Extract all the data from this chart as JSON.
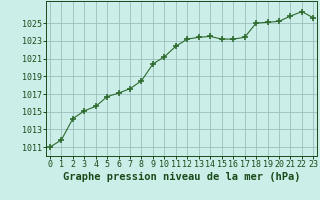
{
  "x": [
    0,
    1,
    2,
    3,
    4,
    5,
    6,
    7,
    8,
    9,
    10,
    11,
    12,
    13,
    14,
    15,
    16,
    17,
    18,
    19,
    20,
    21,
    22,
    23
  ],
  "y": [
    1011.0,
    1011.8,
    1014.2,
    1015.1,
    1015.6,
    1016.7,
    1017.1,
    1017.6,
    1018.5,
    1020.4,
    1021.2,
    1022.4,
    1023.2,
    1023.4,
    1023.5,
    1023.2,
    1023.2,
    1023.4,
    1025.0,
    1025.1,
    1025.2,
    1025.8,
    1026.3,
    1025.6
  ],
  "line_color": "#2d6a2d",
  "marker": "+",
  "marker_size": 4,
  "marker_lw": 1.2,
  "bg_color": "#cceee8",
  "grid_color": "#9bbfbc",
  "xlabel": "Graphe pression niveau de la mer (hPa)",
  "xlabel_color": "#1a4a1a",
  "xlabel_fontsize": 7.5,
  "tick_color": "#1a4a1a",
  "tick_fontsize": 6,
  "ylim": [
    1010.0,
    1027.5
  ],
  "yticks": [
    1011,
    1013,
    1015,
    1017,
    1019,
    1021,
    1023,
    1025
  ],
  "xlim": [
    -0.3,
    23.3
  ],
  "xticks": [
    0,
    1,
    2,
    3,
    4,
    5,
    6,
    7,
    8,
    9,
    10,
    11,
    12,
    13,
    14,
    15,
    16,
    17,
    18,
    19,
    20,
    21,
    22,
    23
  ]
}
